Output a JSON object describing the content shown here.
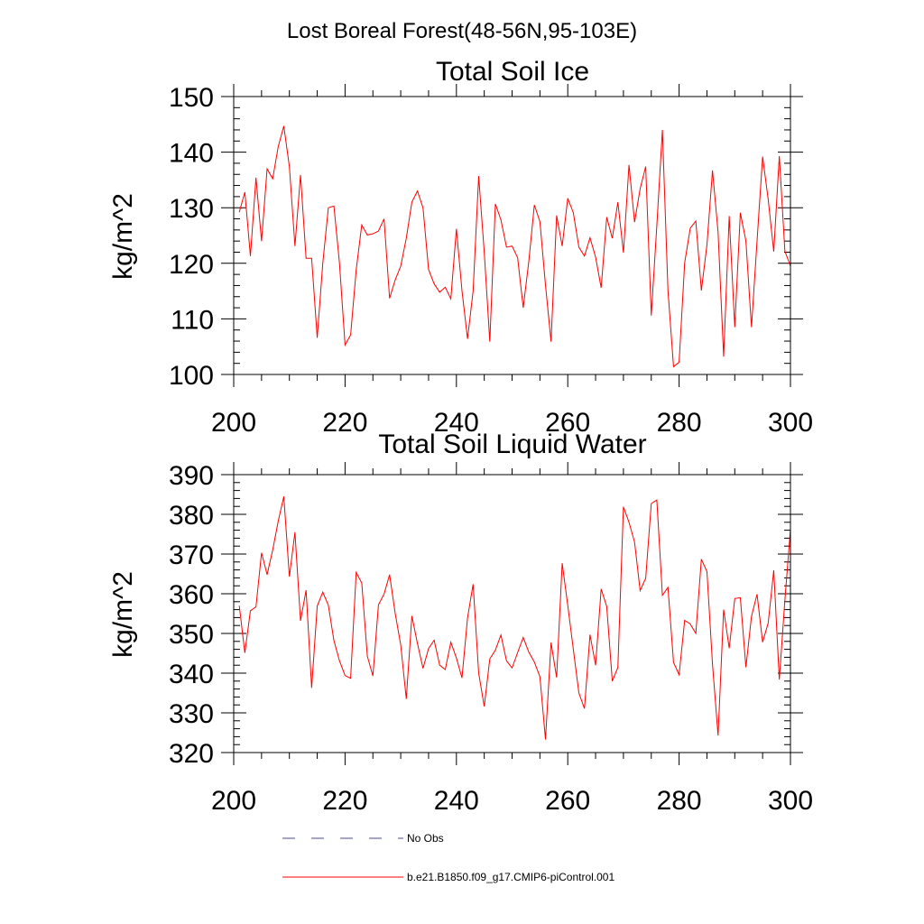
{
  "figure": {
    "title": "Lost Boreal Forest(48-56N,95-103E)"
  },
  "chart_data": [
    {
      "type": "line",
      "title": "Total Soil Ice",
      "xlabel": "",
      "ylabel": "kg/m^2",
      "xlim": [
        200,
        300
      ],
      "ylim": [
        100,
        150
      ],
      "x_ticks": [
        200,
        220,
        240,
        260,
        280,
        300
      ],
      "y_ticks": [
        100,
        110,
        120,
        130,
        140,
        150
      ],
      "x_minor_step": 5,
      "y_minor_step": 2,
      "series": [
        {
          "name": "b.e21.B1850.f09_g17.CMIP6-piControl.001",
          "color": "#ff0000",
          "x_start": 201,
          "x_step": 1,
          "values": [
            129.2,
            132.8,
            121.3,
            135.4,
            124.0,
            137.0,
            135.2,
            141.0,
            144.7,
            137.4,
            123.1,
            135.9,
            120.9,
            120.9,
            106.6,
            120.0,
            130.0,
            130.3,
            120.0,
            105.3,
            107.1,
            118.8,
            126.9,
            125.1,
            125.3,
            125.8,
            128.0,
            113.7,
            117.0,
            119.5,
            124.5,
            131.0,
            133.0,
            130.0,
            118.9,
            116.3,
            114.8,
            115.7,
            113.6,
            126.2,
            115.1,
            106.4,
            115.0,
            135.7,
            122.0,
            105.9,
            130.7,
            127.8,
            122.9,
            123.1,
            121.0,
            112.0,
            120.3,
            130.5,
            127.5,
            116.1,
            105.9,
            128.6,
            123.1,
            131.7,
            129.1,
            122.9,
            121.3,
            124.6,
            121.1,
            115.6,
            128.3,
            124.5,
            131.0,
            121.9,
            137.7,
            127.4,
            133.4,
            137.4,
            110.6,
            126.8,
            144.0,
            115.1,
            101.4,
            102.2,
            120.1,
            126.3,
            127.6,
            115.1,
            123.3,
            136.7,
            125.6,
            103.2,
            128.5,
            108.5,
            129.1,
            124.0,
            108.5,
            124.0,
            139.2,
            131.5,
            122.1,
            139.3,
            122.2,
            119.5
          ]
        }
      ]
    },
    {
      "type": "line",
      "title": "Total Soil Liquid Water",
      "xlabel": "",
      "ylabel": "kg/m^2",
      "xlim": [
        200,
        300
      ],
      "ylim": [
        320,
        390
      ],
      "x_ticks": [
        200,
        220,
        240,
        260,
        280,
        300
      ],
      "y_ticks": [
        320,
        330,
        340,
        350,
        360,
        370,
        380,
        390
      ],
      "x_minor_step": 5,
      "y_minor_step": 2,
      "series": [
        {
          "name": "b.e21.B1850.f09_g17.CMIP6-piControl.001",
          "color": "#ff0000",
          "x_start": 201,
          "x_step": 1,
          "values": [
            357.0,
            345.1,
            355.7,
            356.7,
            370.3,
            364.8,
            371.0,
            378.3,
            384.5,
            364.3,
            375.5,
            353.2,
            360.9,
            336.3,
            356.9,
            360.4,
            357.1,
            348.2,
            343.1,
            339.4,
            338.7,
            365.4,
            362.7,
            344.3,
            339.3,
            357.2,
            359.9,
            364.8,
            355.1,
            347.1,
            333.5,
            354.4,
            347.5,
            341.2,
            346.2,
            348.3,
            342.0,
            340.9,
            347.8,
            343.8,
            338.8,
            353.9,
            362.4,
            340.0,
            331.6,
            343.6,
            345.8,
            349.6,
            343.1,
            341.3,
            345.2,
            349.0,
            345.3,
            342.8,
            339.1,
            323.3,
            347.7,
            338.9,
            367.7,
            357.1,
            346.0,
            335.0,
            331.1,
            349.7,
            342.0,
            361.2,
            356.8,
            338.0,
            341.4,
            381.9,
            378.0,
            373.0,
            360.8,
            363.9,
            382.7,
            383.6,
            359.6,
            361.6,
            342.7,
            339.6,
            353.3,
            352.4,
            350.0,
            368.7,
            365.6,
            342.2,
            324.3,
            356.0,
            346.3,
            358.8,
            359.0,
            341.5,
            354.3,
            359.9,
            347.8,
            352.6,
            365.9,
            338.4,
            358.4,
            376.2
          ]
        }
      ]
    }
  ],
  "legend": {
    "placement": "bottom-center",
    "entries": [
      {
        "label": "No Obs",
        "color": "#4a4a8a",
        "style": "dashed"
      },
      {
        "label": "b.e21.B1850.f09_g17.CMIP6-piControl.001",
        "color": "#ff0000",
        "style": "solid"
      }
    ]
  }
}
